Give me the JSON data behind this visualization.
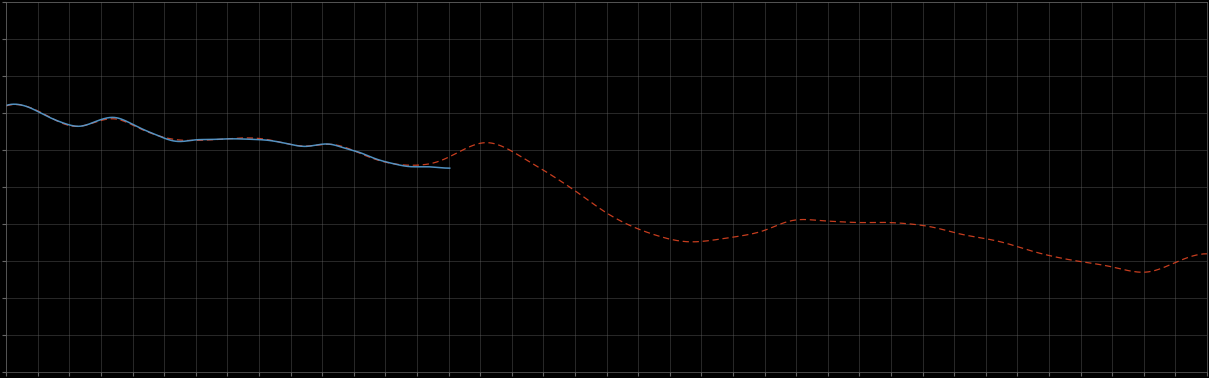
{
  "background_color": "#000000",
  "plot_bg_color": "#000000",
  "grid_color": "#666666",
  "line1_color": "#5599cc",
  "line2_color": "#dd4422",
  "figsize": [
    12.09,
    3.78
  ],
  "dpi": 100,
  "grid_nx": 38,
  "grid_ny": 10,
  "xlim": [
    0,
    100
  ],
  "ylim": [
    0,
    10
  ]
}
